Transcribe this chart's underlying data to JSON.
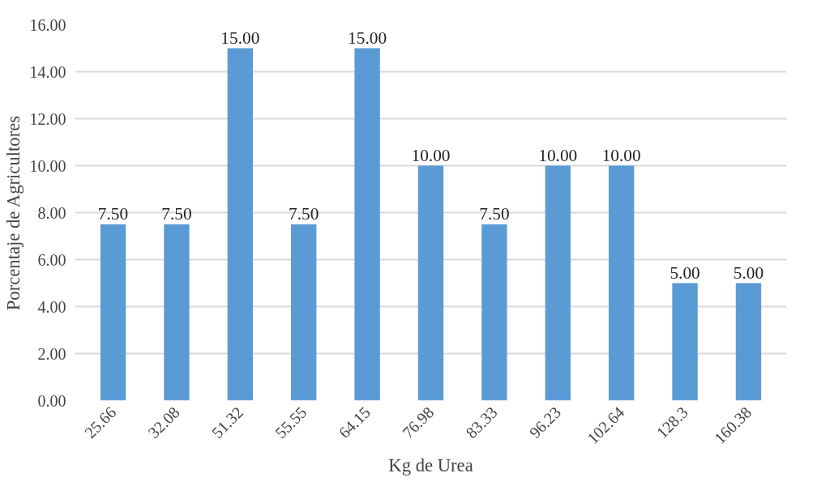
{
  "chart_data": {
    "type": "bar",
    "xlabel": "Kg de Urea",
    "ylabel": "Porcentaje de Agricultores",
    "categories": [
      "25.66",
      "32.08",
      "51.32",
      "55.55",
      "64.15",
      "76.98",
      "83.33",
      "96.23",
      "102.64",
      "128.3",
      "160.38"
    ],
    "values": [
      7.5,
      7.5,
      15,
      7.5,
      15,
      10,
      7.5,
      10,
      10,
      5,
      5
    ],
    "value_labels": [
      "7.50",
      "7.50",
      "15.00",
      "7.50",
      "15.00",
      "10.00",
      "7.50",
      "10.00",
      "10.00",
      "5.00",
      "5.00"
    ],
    "color": "#5b9bd5",
    "ylim": [
      0,
      16
    ],
    "yticks": [
      {
        "value": 0,
        "label": "0.00"
      },
      {
        "value": 2,
        "label": "2.00"
      },
      {
        "value": 4,
        "label": "4.00"
      },
      {
        "value": 6,
        "label": "6.00"
      },
      {
        "value": 8,
        "label": "8.00"
      },
      {
        "value": 10,
        "label": "10.00"
      },
      {
        "value": 12,
        "label": "12.00"
      },
      {
        "value": 14,
        "label": "14.00"
      },
      {
        "value": 16,
        "label": "16.00"
      }
    ],
    "grid": "y"
  }
}
